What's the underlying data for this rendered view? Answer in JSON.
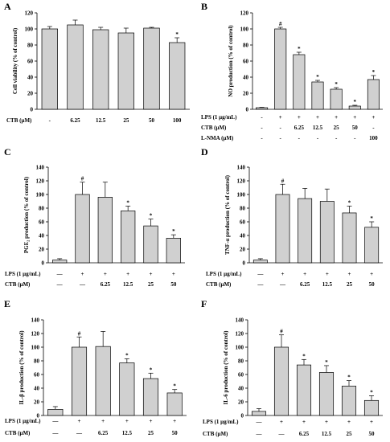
{
  "colors": {
    "bar": "#d0d0d0",
    "stroke": "#000000"
  },
  "chart_data": [
    {
      "panel": "A",
      "type": "bar",
      "ylabel": "Cell viability (% of control)",
      "ylim": [
        0,
        120
      ],
      "yticks": [
        0,
        20,
        40,
        60,
        80,
        100,
        120
      ],
      "values": [
        100,
        105,
        99,
        95,
        101,
        83
      ],
      "errors": [
        3,
        6,
        3,
        6,
        1,
        6
      ],
      "marks": [
        "",
        "",
        "",
        "",
        "",
        "*"
      ],
      "rows": [
        {
          "label": "CTB (μM)",
          "cells": [
            "-",
            "6.25",
            "12.5",
            "25",
            "50",
            "100"
          ]
        }
      ]
    },
    {
      "panel": "B",
      "type": "bar",
      "ylabel": "NO production (% of control)",
      "ylim": [
        0,
        120
      ],
      "yticks": [
        0,
        20,
        40,
        60,
        80,
        100,
        120
      ],
      "values": [
        2,
        100,
        68,
        34,
        25,
        4,
        37
      ],
      "errors": [
        0.5,
        2,
        3,
        2,
        2,
        1,
        5
      ],
      "marks": [
        "",
        "#",
        "*",
        "*",
        "*",
        "*",
        "*"
      ],
      "rows": [
        {
          "label": "LPS (1 μg/mL)",
          "cells": [
            "-",
            "+",
            "+",
            "+",
            "+",
            "+",
            "+"
          ]
        },
        {
          "label": "CTB (μM)",
          "cells": [
            "-",
            "-",
            "6.25",
            "12.5",
            "25",
            "50",
            "-"
          ]
        },
        {
          "label": "L-NMA (μM)",
          "cells": [
            "-",
            "-",
            "-",
            "-",
            "-",
            "-",
            "100"
          ]
        }
      ]
    },
    {
      "panel": "C",
      "type": "bar",
      "ylabel": "PGE₂ production (% of control)",
      "ylim": [
        0,
        140
      ],
      "yticks": [
        0,
        20,
        40,
        60,
        80,
        100,
        120,
        140
      ],
      "values": [
        4,
        100,
        96,
        76,
        54,
        36
      ],
      "errors": [
        2,
        18,
        22,
        7,
        10,
        5
      ],
      "marks": [
        "",
        "#",
        "",
        "*",
        "*",
        "*"
      ],
      "rows": [
        {
          "label": "LPS (1 μg/mL)",
          "cells": [
            "—",
            "+",
            "+",
            "+",
            "+",
            "+"
          ]
        },
        {
          "label": "CTB (μM)",
          "cells": [
            "—",
            "—",
            "6.25",
            "12.5",
            "25",
            "50"
          ]
        }
      ]
    },
    {
      "panel": "D",
      "type": "bar",
      "ylabel": "TNF-α production (% of control)",
      "ylim": [
        0,
        140
      ],
      "yticks": [
        0,
        20,
        40,
        60,
        80,
        100,
        120,
        140
      ],
      "values": [
        4,
        100,
        94,
        90,
        73,
        52
      ],
      "errors": [
        2,
        15,
        15,
        18,
        10,
        8
      ],
      "marks": [
        "",
        "#",
        "",
        "",
        "*",
        "*"
      ],
      "rows": [
        {
          "label": "LPS (1 μg/mL)",
          "cells": [
            "—",
            "+",
            "+",
            "+",
            "+",
            "+"
          ]
        },
        {
          "label": "CTB (μM)",
          "cells": [
            "—",
            "—",
            "6.25",
            "12.5",
            "25",
            "50"
          ]
        }
      ]
    },
    {
      "panel": "E",
      "type": "bar",
      "ylabel": "IL-β production (% of control)",
      "ylim": [
        0,
        140
      ],
      "yticks": [
        0,
        20,
        40,
        60,
        80,
        100,
        120,
        140
      ],
      "values": [
        9,
        100,
        101,
        77,
        54,
        33
      ],
      "errors": [
        4,
        15,
        22,
        6,
        8,
        5
      ],
      "marks": [
        "",
        "#",
        "",
        "*",
        "*",
        "*"
      ],
      "rows": [
        {
          "label": "LPS (1 μg/mL)",
          "cells": [
            "—",
            "+",
            "+",
            "+",
            "+",
            "+"
          ]
        },
        {
          "label": "CTB (μM)",
          "cells": [
            "—",
            "—",
            "6.25",
            "12.5",
            "25",
            "50"
          ]
        }
      ]
    },
    {
      "panel": "F",
      "type": "bar",
      "ylabel": "IL-6 production (% of control)",
      "ylim": [
        0,
        140
      ],
      "yticks": [
        0,
        20,
        40,
        60,
        80,
        100,
        120,
        140
      ],
      "values": [
        6,
        100,
        74,
        63,
        43,
        22
      ],
      "errors": [
        4,
        18,
        8,
        10,
        8,
        7
      ],
      "marks": [
        "",
        "#",
        "*",
        "*",
        "*",
        "*"
      ],
      "rows": [
        {
          "label": "LPS (1 μg/mL)",
          "cells": [
            "—",
            "+",
            "+",
            "+",
            "+",
            "+"
          ]
        },
        {
          "label": "CTB (μM)",
          "cells": [
            "—",
            "—",
            "6.25",
            "12.5",
            "25",
            "50"
          ]
        }
      ]
    }
  ]
}
